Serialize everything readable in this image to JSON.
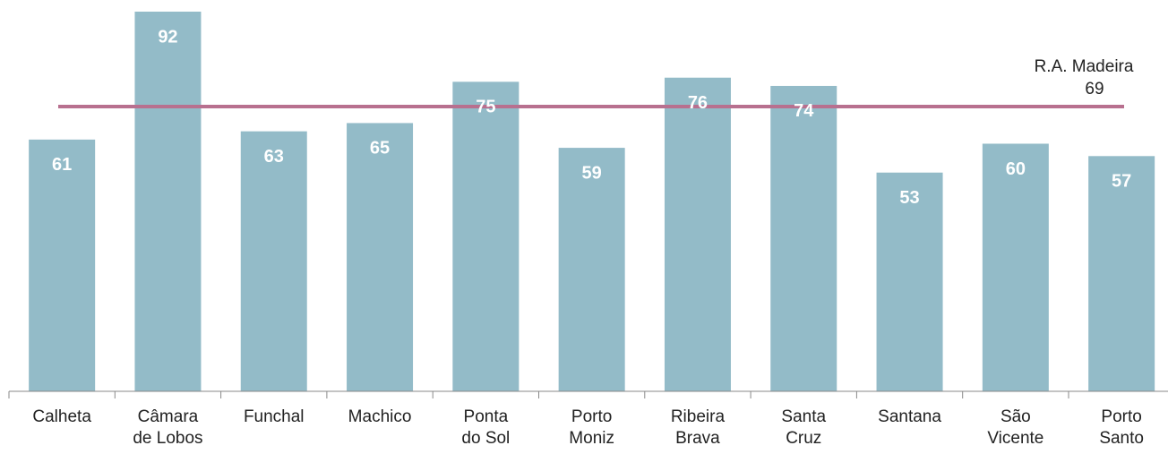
{
  "chart_data": {
    "type": "bar",
    "categories": [
      "Calheta",
      "Câmara\nde Lobos",
      "Funchal",
      "Machico",
      "Ponta\ndo Sol",
      "Porto\nMoniz",
      "Ribeira\nBrava",
      "Santa\nCruz",
      "Santana",
      "São\nVicente",
      "Porto\nSanto"
    ],
    "values": [
      61,
      92,
      63,
      65,
      75,
      59,
      76,
      74,
      53,
      60,
      57
    ],
    "color": "#93bbc8",
    "ylim": [
      0,
      92
    ],
    "reference_line": {
      "label": "R.A. Madeira",
      "value": 69,
      "color": "#b8708f"
    }
  }
}
